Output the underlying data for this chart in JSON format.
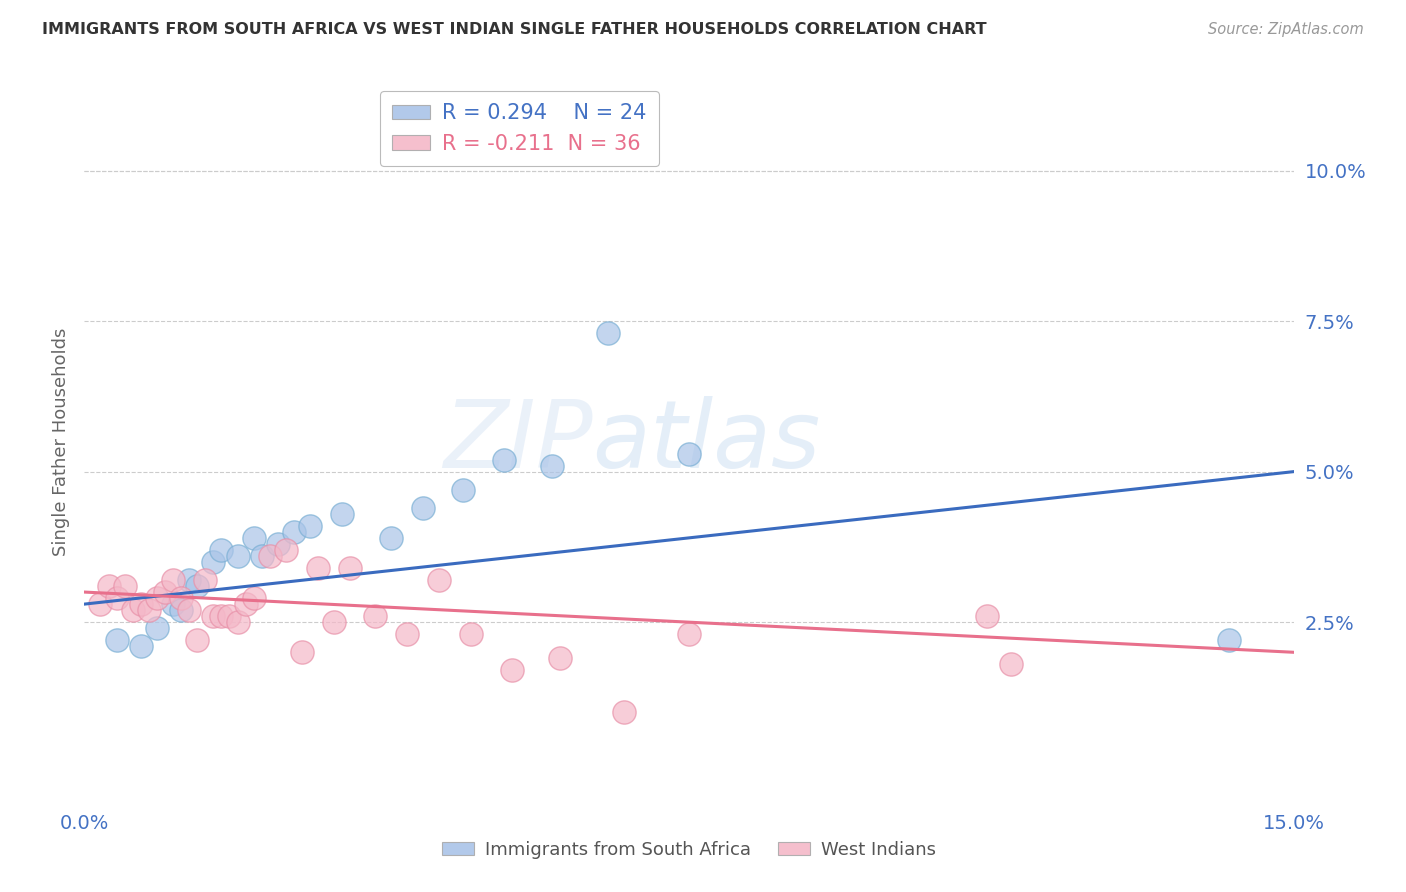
{
  "title": "IMMIGRANTS FROM SOUTH AFRICA VS WEST INDIAN SINGLE FATHER HOUSEHOLDS CORRELATION CHART",
  "source": "Source: ZipAtlas.com",
  "ylabel": "Single Father Households",
  "xlim": [
    0.0,
    0.15
  ],
  "ylim": [
    -0.005,
    0.115
  ],
  "yticks": [
    0.025,
    0.05,
    0.075,
    0.1
  ],
  "ytick_labels": [
    "2.5%",
    "5.0%",
    "7.5%",
    "10.0%"
  ],
  "xticks": [
    0.0,
    0.025,
    0.05,
    0.075,
    0.1,
    0.125,
    0.15
  ],
  "xtick_labels_show": [
    "0.0%",
    "15.0%"
  ],
  "blue_R": 0.294,
  "blue_N": 24,
  "pink_R": -0.211,
  "pink_N": 36,
  "blue_label": "Immigrants from South Africa",
  "pink_label": "West Indians",
  "background_color": "#ffffff",
  "grid_color": "#cccccc",
  "blue_color": "#aac4e8",
  "blue_edge_color": "#7aafd4",
  "blue_line_color": "#3a6bbf",
  "pink_color": "#f4b8c8",
  "pink_edge_color": "#e890a8",
  "pink_line_color": "#e8708c",
  "tick_label_color": "#4472c4",
  "ylabel_color": "#666666",
  "title_color": "#333333",
  "source_color": "#999999",
  "watermark_color": "#c8ddf0",
  "blue_x": [
    0.004,
    0.007,
    0.009,
    0.011,
    0.012,
    0.013,
    0.014,
    0.016,
    0.017,
    0.019,
    0.021,
    0.022,
    0.024,
    0.026,
    0.028,
    0.032,
    0.038,
    0.042,
    0.047,
    0.052,
    0.058,
    0.065,
    0.075,
    0.142
  ],
  "blue_y": [
    0.022,
    0.021,
    0.024,
    0.028,
    0.027,
    0.032,
    0.031,
    0.035,
    0.037,
    0.036,
    0.039,
    0.036,
    0.038,
    0.04,
    0.041,
    0.043,
    0.039,
    0.044,
    0.047,
    0.052,
    0.051,
    0.073,
    0.053,
    0.022
  ],
  "pink_x": [
    0.002,
    0.003,
    0.004,
    0.005,
    0.006,
    0.007,
    0.008,
    0.009,
    0.01,
    0.011,
    0.012,
    0.013,
    0.014,
    0.015,
    0.016,
    0.017,
    0.018,
    0.019,
    0.02,
    0.021,
    0.023,
    0.025,
    0.027,
    0.029,
    0.031,
    0.033,
    0.036,
    0.04,
    0.044,
    0.048,
    0.053,
    0.059,
    0.067,
    0.075,
    0.112,
    0.115
  ],
  "pink_y": [
    0.028,
    0.031,
    0.029,
    0.031,
    0.027,
    0.028,
    0.027,
    0.029,
    0.03,
    0.032,
    0.029,
    0.027,
    0.022,
    0.032,
    0.026,
    0.026,
    0.026,
    0.025,
    0.028,
    0.029,
    0.036,
    0.037,
    0.02,
    0.034,
    0.025,
    0.034,
    0.026,
    0.023,
    0.032,
    0.023,
    0.017,
    0.019,
    0.01,
    0.023,
    0.026,
    0.018
  ],
  "blue_line_x0": 0.0,
  "blue_line_y0": 0.028,
  "blue_line_x1": 0.15,
  "blue_line_y1": 0.05,
  "pink_line_x0": 0.0,
  "pink_line_y0": 0.03,
  "pink_line_x1": 0.15,
  "pink_line_y1": 0.02
}
